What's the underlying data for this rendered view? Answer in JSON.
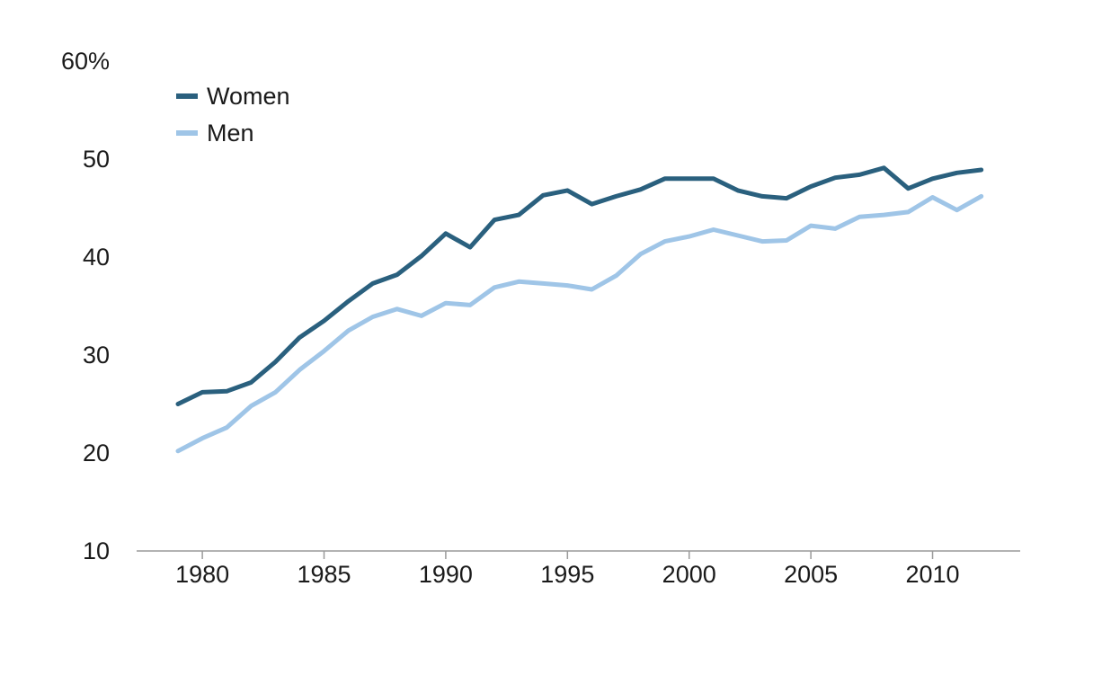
{
  "chart_data": {
    "type": "line",
    "title": "",
    "xlabel": "",
    "ylabel": "",
    "xlim": [
      1977.3,
      2013.6
    ],
    "ylim": [
      10,
      60
    ],
    "y_ticks": [
      10,
      20,
      30,
      40,
      50,
      60
    ],
    "y_tick_labels": [
      "10",
      "20",
      "30",
      "40",
      "50",
      "60%"
    ],
    "x_ticks": [
      1980,
      1985,
      1990,
      1995,
      2000,
      2005,
      2010
    ],
    "x_tick_labels": [
      "1980",
      "1985",
      "1990",
      "1995",
      "2000",
      "2005",
      "2010"
    ],
    "grid": false,
    "legend_position": "top-left",
    "x": [
      1979,
      1980,
      1981,
      1982,
      1983,
      1984,
      1985,
      1986,
      1987,
      1988,
      1989,
      1990,
      1991,
      1992,
      1993,
      1994,
      1995,
      1996,
      1997,
      1998,
      1999,
      2000,
      2001,
      2002,
      2003,
      2004,
      2005,
      2006,
      2007,
      2008,
      2009,
      2010,
      2011,
      2012
    ],
    "series": [
      {
        "name": "Women",
        "color": "#2a607e",
        "values": [
          25.0,
          26.2,
          26.3,
          27.2,
          29.3,
          31.8,
          33.5,
          35.5,
          37.3,
          38.2,
          40.1,
          42.4,
          41.0,
          43.8,
          44.3,
          46.3,
          46.8,
          45.4,
          46.2,
          46.9,
          48.0,
          48.0,
          48.0,
          46.8,
          46.2,
          46.0,
          47.2,
          48.1,
          48.4,
          49.1,
          47.0,
          48.0,
          48.6,
          48.9
        ]
      },
      {
        "name": "Men",
        "color": "#9fc5e7",
        "values": [
          20.2,
          21.5,
          22.6,
          24.8,
          26.2,
          28.5,
          30.4,
          32.5,
          33.9,
          34.7,
          34.0,
          35.3,
          35.1,
          36.9,
          37.5,
          37.3,
          37.1,
          36.7,
          38.1,
          40.3,
          41.6,
          42.1,
          42.8,
          42.2,
          41.6,
          41.7,
          43.2,
          42.9,
          44.1,
          44.3,
          44.6,
          46.1,
          44.8,
          46.2
        ]
      }
    ]
  }
}
